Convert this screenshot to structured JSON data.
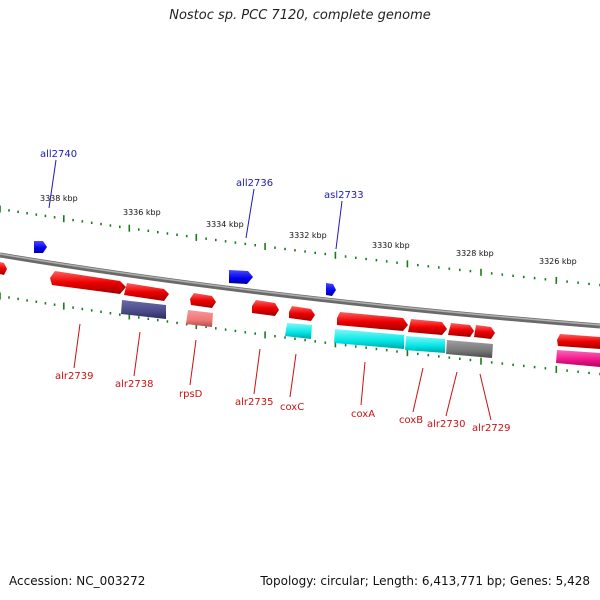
{
  "title": "Nostoc sp. PCC 7120, complete genome",
  "accession": "Accession: NC_003272",
  "summary": "Topology: circular; Length: 6,413,771 bp; Genes: 5,428",
  "colors": {
    "backbone": "#808080",
    "minus_strand_gene": "#0000ee",
    "minus_label": "#1a1ab8",
    "plus_strand_gene": "#ee0000",
    "plus_label": "#cc1111",
    "tick": "#1a7a1a",
    "cds_dark": "#4a4a8a",
    "cds_salmon": "#ee7777",
    "cds_cyan": "#00e5e5",
    "cds_gray": "#777777",
    "cds_pink": "#ee1188"
  },
  "scale_labels": [
    "3338 kbp",
    "3336 kbp",
    "3334 kbp",
    "3332 kbp",
    "3330 kbp",
    "3328 kbp",
    "3326 kbp"
  ],
  "genes_top": [
    {
      "name": "all2740"
    },
    {
      "name": "all2736"
    },
    {
      "name": "asl2733"
    }
  ],
  "genes_bottom": [
    {
      "name": "alr2739"
    },
    {
      "name": "alr2738"
    },
    {
      "name": "rpsD"
    },
    {
      "name": "alr2735"
    },
    {
      "name": "coxC"
    },
    {
      "name": "coxA"
    },
    {
      "name": "coxB"
    },
    {
      "name": "alr2730"
    },
    {
      "name": "alr2729"
    }
  ]
}
